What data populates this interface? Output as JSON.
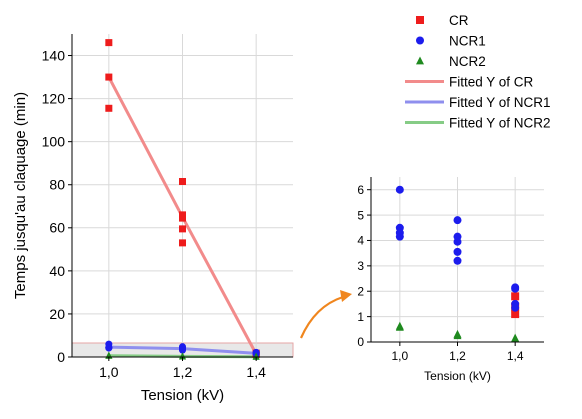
{
  "colors": {
    "cr": "#ee1c1c",
    "ncr1": "#1c1ced",
    "ncr2": "#1f8a1f",
    "fit_cr": "#f28b8b",
    "fit_ncr1": "#8f8fee",
    "fit_ncr2": "#86cc86",
    "zoom_region": "#e6a6a6",
    "arrow": "#f0861e"
  },
  "legend": {
    "items": [
      {
        "label": "CR",
        "kind": "marker",
        "marker": "square",
        "color_key": "cr"
      },
      {
        "label": "NCR1",
        "kind": "marker",
        "marker": "circle",
        "color_key": "ncr1"
      },
      {
        "label": "NCR2",
        "kind": "marker",
        "marker": "triangle",
        "color_key": "ncr2"
      },
      {
        "label": "Fitted Y of CR",
        "kind": "line",
        "color_key": "fit_cr"
      },
      {
        "label": "Fitted Y of NCR1",
        "kind": "line",
        "color_key": "fit_ncr1"
      },
      {
        "label": "Fitted Y of NCR2",
        "kind": "line",
        "color_key": "fit_ncr2"
      }
    ]
  },
  "chart_data": [
    {
      "type": "scatter",
      "xlabel": "Tension (kV)",
      "ylabel": "Temps jusqu'au claquage (min)",
      "xlim": [
        0.9,
        1.5
      ],
      "ylim": [
        0,
        150
      ],
      "xticks": [
        {
          "v": 1.0,
          "label": "1,0"
        },
        {
          "v": 1.2,
          "label": "1,2"
        },
        {
          "v": 1.4,
          "label": "1,4"
        }
      ],
      "yticks": [
        {
          "v": 0,
          "label": "0"
        },
        {
          "v": 20,
          "label": "20"
        },
        {
          "v": 40,
          "label": "40"
        },
        {
          "v": 60,
          "label": "60"
        },
        {
          "v": 80,
          "label": "80"
        },
        {
          "v": 100,
          "label": "100"
        },
        {
          "v": 120,
          "label": "120"
        },
        {
          "v": 140,
          "label": "140"
        }
      ],
      "grid": true,
      "zoom_region": {
        "x": [
          0.9,
          1.5
        ],
        "y": [
          0,
          6.5
        ]
      },
      "series": [
        {
          "name": "CR",
          "marker": "square",
          "color_key": "cr",
          "points": [
            [
              1.0,
              146
            ],
            [
              1.0,
              130
            ],
            [
              1.0,
              115.5
            ],
            [
              1.2,
              81.5
            ],
            [
              1.2,
              66
            ],
            [
              1.2,
              64.5
            ],
            [
              1.2,
              59.5
            ],
            [
              1.2,
              53
            ],
            [
              1.4,
              1.8
            ],
            [
              1.4,
              1.4
            ],
            [
              1.4,
              1.1
            ]
          ]
        },
        {
          "name": "NCR1",
          "marker": "circle",
          "color_key": "ncr1",
          "points": [
            [
              1.0,
              6.0
            ],
            [
              1.0,
              4.5
            ],
            [
              1.0,
              4.3
            ],
            [
              1.0,
              4.15
            ],
            [
              1.2,
              4.8
            ],
            [
              1.2,
              4.15
            ],
            [
              1.2,
              3.95
            ],
            [
              1.2,
              3.55
            ],
            [
              1.2,
              3.2
            ],
            [
              1.4,
              2.15
            ],
            [
              1.4,
              2.1
            ],
            [
              1.4,
              1.5
            ],
            [
              1.4,
              1.35
            ]
          ]
        },
        {
          "name": "NCR2",
          "marker": "triangle",
          "color_key": "ncr2",
          "points": [
            [
              1.0,
              0.62
            ],
            [
              1.0,
              0.58
            ],
            [
              1.2,
              0.3
            ],
            [
              1.2,
              0.25
            ],
            [
              1.4,
              0.15
            ],
            [
              1.4,
              0.12
            ]
          ]
        }
      ],
      "fits": [
        {
          "name": "Fitted Y of CR",
          "color_key": "fit_cr",
          "points": [
            [
              1.0,
              130
            ],
            [
              1.2,
              65
            ],
            [
              1.4,
              1.4
            ]
          ]
        },
        {
          "name": "Fitted Y of NCR1",
          "color_key": "fit_ncr1",
          "points": [
            [
              1.0,
              4.6
            ],
            [
              1.2,
              3.9
            ],
            [
              1.4,
              1.7
            ]
          ]
        },
        {
          "name": "Fitted Y of NCR2",
          "color_key": "fit_ncr2",
          "points": [
            [
              1.0,
              0.6
            ],
            [
              1.2,
              0.3
            ],
            [
              1.4,
              0.13
            ]
          ]
        }
      ]
    },
    {
      "type": "scatter",
      "xlabel": "Tension (kV)",
      "ylabel": "",
      "xlim": [
        0.9,
        1.5
      ],
      "ylim": [
        0,
        6.5
      ],
      "xticks": [
        {
          "v": 1.0,
          "label": "1,0"
        },
        {
          "v": 1.2,
          "label": "1,2"
        },
        {
          "v": 1.4,
          "label": "1,4"
        }
      ],
      "yticks": [
        {
          "v": 0,
          "label": "0"
        },
        {
          "v": 1,
          "label": "1"
        },
        {
          "v": 2,
          "label": "2"
        },
        {
          "v": 3,
          "label": "3"
        },
        {
          "v": 4,
          "label": "4"
        },
        {
          "v": 5,
          "label": "5"
        },
        {
          "v": 6,
          "label": "6"
        }
      ],
      "grid": true,
      "series": [
        {
          "name": "CR",
          "marker": "square",
          "color_key": "cr",
          "points": [
            [
              1.4,
              1.8
            ],
            [
              1.4,
              1.4
            ],
            [
              1.4,
              1.1
            ]
          ]
        },
        {
          "name": "NCR1",
          "marker": "circle",
          "color_key": "ncr1",
          "points": [
            [
              1.0,
              6.0
            ],
            [
              1.0,
              4.5
            ],
            [
              1.0,
              4.3
            ],
            [
              1.0,
              4.15
            ],
            [
              1.2,
              4.8
            ],
            [
              1.2,
              4.15
            ],
            [
              1.2,
              3.95
            ],
            [
              1.2,
              3.55
            ],
            [
              1.2,
              3.2
            ],
            [
              1.4,
              2.15
            ],
            [
              1.4,
              2.1
            ],
            [
              1.4,
              1.5
            ],
            [
              1.4,
              1.35
            ]
          ]
        },
        {
          "name": "NCR2",
          "marker": "triangle",
          "color_key": "ncr2",
          "points": [
            [
              1.0,
              0.62
            ],
            [
              1.0,
              0.58
            ],
            [
              1.2,
              0.3
            ],
            [
              1.2,
              0.25
            ],
            [
              1.4,
              0.15
            ],
            [
              1.4,
              0.12
            ]
          ]
        }
      ]
    }
  ]
}
